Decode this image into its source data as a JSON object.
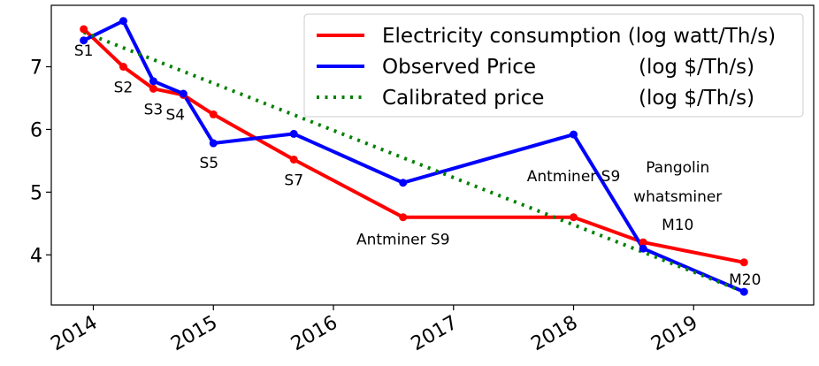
{
  "chart_data": {
    "type": "line",
    "title": "",
    "xlabel": "",
    "ylabel": "",
    "x_ticks": [
      "2014",
      "2015",
      "2016",
      "2017",
      "2018",
      "2019"
    ],
    "y_ticks": [
      "4",
      "5",
      "6",
      "7"
    ],
    "xlim": [
      2013.65,
      2020.0
    ],
    "ylim": [
      3.2,
      7.98
    ],
    "grid": false,
    "legend_position": "top-right",
    "series": [
      {
        "name": "Electricity consumption (log watt/Th/s)",
        "color": "#ff0000",
        "style": "solid",
        "markers": true,
        "x": [
          2013.92,
          2014.25,
          2014.5,
          2014.75,
          2015.0,
          2015.67,
          2016.58,
          2018.0,
          2018.58,
          2019.42
        ],
        "y": [
          7.6,
          7.0,
          6.65,
          6.55,
          6.24,
          5.52,
          4.6,
          4.6,
          4.2,
          3.88
        ]
      },
      {
        "name": "Observed Price",
        "unit_label": "(log $/Th/s)",
        "color": "#0000ff",
        "style": "solid",
        "markers": true,
        "x": [
          2013.92,
          2014.25,
          2014.5,
          2014.75,
          2015.0,
          2015.67,
          2016.58,
          2018.0,
          2018.58,
          2019.42
        ],
        "y": [
          7.42,
          7.73,
          6.77,
          6.57,
          5.78,
          5.93,
          5.15,
          5.92,
          4.1,
          3.41
        ]
      },
      {
        "name": "Calibrated price",
        "unit_label": "(log $/Th/s)",
        "color": "#008000",
        "style": "dotted",
        "markers": false,
        "x": [
          2013.92,
          2019.42
        ],
        "y": [
          7.55,
          3.41
        ]
      }
    ],
    "annotations": [
      {
        "text": "S1",
        "x": 2013.92,
        "y": 7.6
      },
      {
        "text": "S2",
        "x": 2014.25,
        "y": 7.0
      },
      {
        "text": "S3",
        "x": 2014.5,
        "y": 6.65
      },
      {
        "text": "S4",
        "x": 2014.75,
        "y": 6.55
      },
      {
        "text": "S5",
        "x": 2015.0,
        "y": 5.78
      },
      {
        "text": "S7",
        "x": 2015.67,
        "y": 5.52
      },
      {
        "text": "Antminer  S9",
        "x": 2016.58,
        "y": 4.6
      },
      {
        "text": "Antminer  S9",
        "x": 2018.0,
        "y": 5.92
      },
      {
        "text": "Pangolin",
        "x": 2018.58,
        "y": 4.2
      },
      {
        "text": "whatsminer",
        "x": 2018.58,
        "y": 4.2
      },
      {
        "text": "M10",
        "x": 2018.58,
        "y": 4.2
      },
      {
        "text": "M20",
        "x": 2019.42,
        "y": 3.41
      }
    ]
  }
}
